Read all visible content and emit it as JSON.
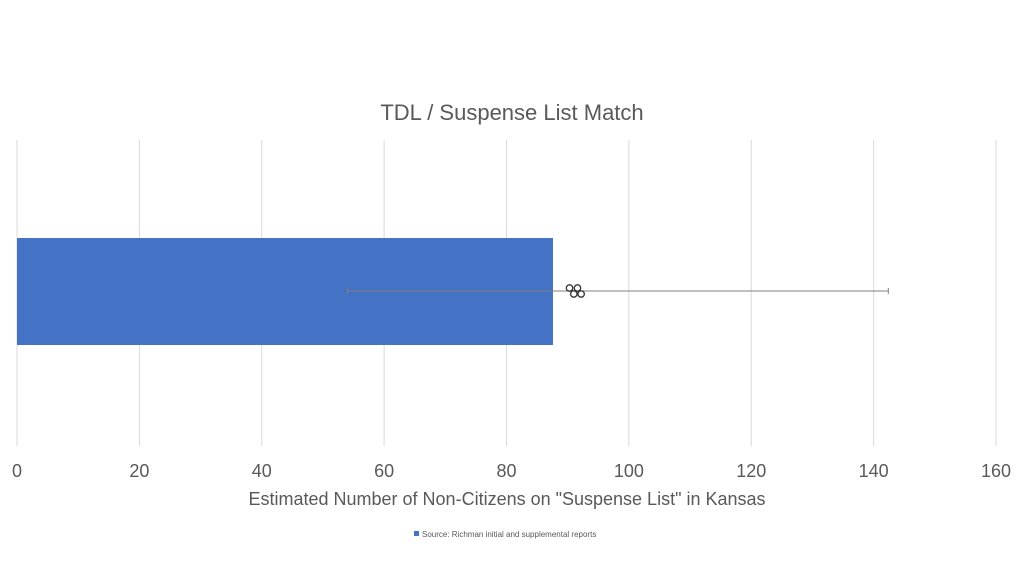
{
  "chart_data": {
    "type": "bar",
    "orientation": "horizontal",
    "title": "TDL / Suspense List Match",
    "xlabel": "Estimated Number of Non-Citizens on \"Suspense List\" in Kansas",
    "ylabel": "",
    "xlim": [
      0,
      160
    ],
    "x_ticks": [
      0,
      20,
      40,
      60,
      80,
      100,
      120,
      140,
      160
    ],
    "grid": true,
    "categories": [
      ""
    ],
    "series": [
      {
        "name": "Source: Richman initial and supplemental reports",
        "values": [
          87.6
        ],
        "error_low": [
          54
        ],
        "error_high": [
          142.4
        ],
        "color": "#4472c4"
      }
    ],
    "scatter_points": [
      91.6,
      91.0,
      90.3,
      92.2
    ],
    "legend_position": "bottom",
    "colors": {
      "bar": "#4472c4",
      "grid": "#d9d9d9",
      "text": "#595959",
      "error_bar": "#7f7f7f"
    }
  }
}
